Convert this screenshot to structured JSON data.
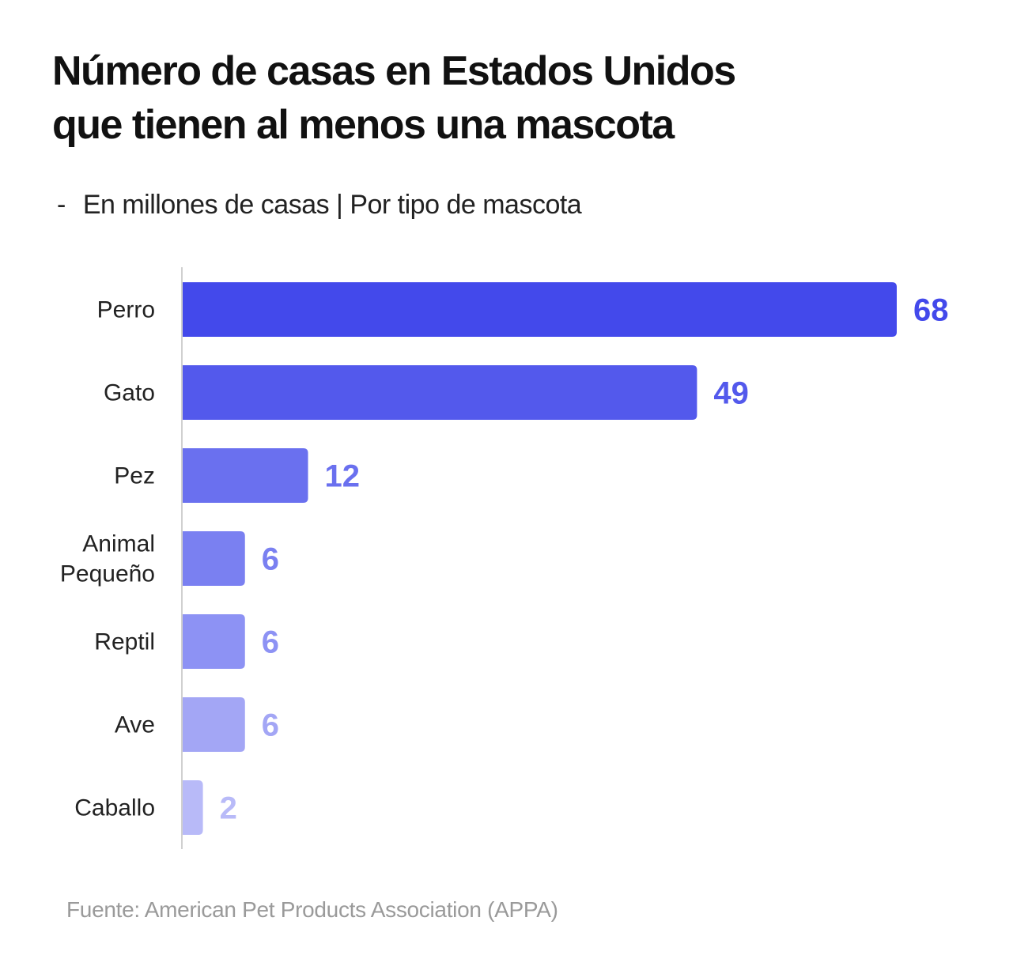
{
  "header": {
    "title_lines": [
      "Número de casas en Estados Unidos",
      "que tienen al menos una mascota"
    ],
    "subtitle_dash": "-",
    "subtitle": "En millones de casas | Por tipo de mascota"
  },
  "footer": {
    "source": "Fuente: American Pet Products Association (APPA)"
  },
  "chart_data": {
    "type": "bar",
    "orientation": "horizontal",
    "title": "Número de casas en Estados Unidos que tienen al menos una mascota",
    "subtitle": "En millones de casas | Por tipo de mascota",
    "xlabel": "",
    "ylabel": "",
    "unit": "millones de casas",
    "xlim": [
      0,
      68
    ],
    "grid": false,
    "legend": "none",
    "categories": [
      [
        "Perro"
      ],
      [
        "Gato"
      ],
      [
        "Pez"
      ],
      [
        "Animal",
        "Pequeño"
      ],
      [
        "Reptil"
      ],
      [
        "Ave"
      ],
      [
        "Caballo"
      ]
    ],
    "values": [
      68,
      49,
      12,
      6,
      6,
      6,
      2
    ],
    "data_labels": [
      "68",
      "49",
      "12",
      "6",
      "6",
      "6",
      "2"
    ],
    "colors": [
      "#4349eb",
      "#5359ec",
      "#6a70ef",
      "#7a80f1",
      "#8d92f4",
      "#a3a6f5",
      "#b8baf8"
    ],
    "source": "American Pet Products Association (APPA)"
  }
}
